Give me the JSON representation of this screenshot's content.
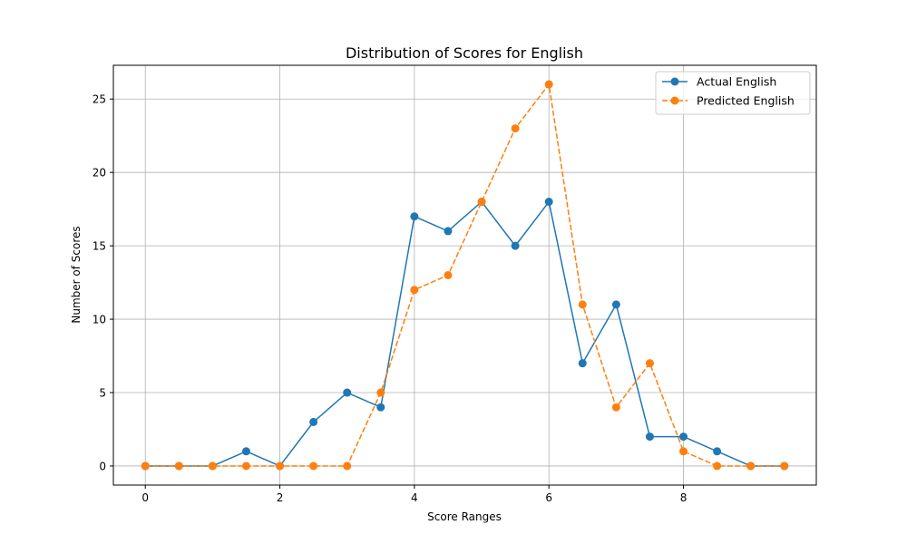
{
  "chart_data": {
    "type": "line",
    "title": "Distribution of Scores for English",
    "xlabel": "Score Ranges",
    "ylabel": "Number of Scores",
    "xlim": [
      -0.475,
      9.975
    ],
    "ylim": [
      -1.3,
      27.3
    ],
    "xticks": [
      0,
      2,
      4,
      6,
      8
    ],
    "yticks": [
      0,
      5,
      10,
      15,
      20,
      25
    ],
    "grid": true,
    "legend_position": "top-right",
    "x": [
      0,
      0.5,
      1,
      1.5,
      2,
      2.5,
      3,
      3.5,
      4,
      4.5,
      5,
      5.5,
      6,
      6.5,
      7,
      7.5,
      8,
      8.5,
      9,
      9.5
    ],
    "series": [
      {
        "name": "Actual English",
        "color": "#1f77b4",
        "line_style": "solid",
        "marker": "circle",
        "values": [
          0,
          0,
          0,
          1,
          0,
          3,
          5,
          4,
          17,
          16,
          18,
          15,
          18,
          7,
          11,
          2,
          2,
          1,
          0,
          0
        ]
      },
      {
        "name": "Predicted English",
        "color": "#ff7f0e",
        "line_style": "dashed",
        "marker": "circle",
        "values": [
          0,
          0,
          0,
          0,
          0,
          0,
          0,
          5,
          12,
          13,
          18,
          23,
          26,
          11,
          4,
          7,
          1,
          0,
          0,
          0
        ]
      }
    ]
  }
}
